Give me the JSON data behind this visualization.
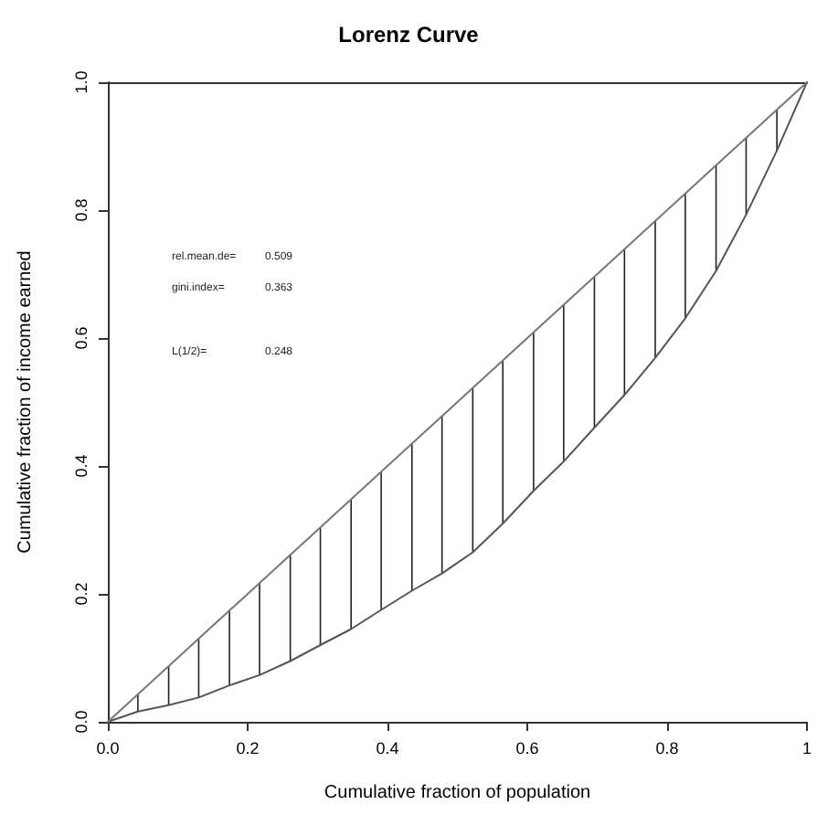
{
  "chart_data": {
    "type": "line",
    "title": "Lorenz Curve",
    "xlabel": "Cumulative fraction of population",
    "ylabel": "Cumulative fraction of income earned",
    "annotations": [
      "rel.mean.de= 0.509",
      "gini.index= 0.363",
      "L(1/2)= 0.248"
    ],
    "series": [
      {
        "color": "#555555",
        "x": [
          0,
          0.043,
          0.087,
          0.13,
          0.174,
          0.217,
          0.261,
          0.304,
          0.348,
          0.391,
          0.435,
          0.478,
          0.522,
          0.565,
          0.609,
          0.652,
          0.696,
          0.739,
          0.783,
          0.826,
          0.87,
          0.913,
          0.957,
          1
        ],
        "values": [
          0,
          0.016,
          0.026,
          0.038,
          0.057,
          0.073,
          0.095,
          0.12,
          0.145,
          0.175,
          0.205,
          0.232,
          0.265,
          0.31,
          0.361,
          0.407,
          0.46,
          0.511,
          0.569,
          0.631,
          0.705,
          0.793,
          0.893,
          1
        ],
        "errors": [
          null,
          [
            0.016,
            0.043
          ],
          [
            0.026,
            0.087
          ],
          [
            0.038,
            0.13
          ],
          [
            0.057,
            0.174
          ],
          [
            0.073,
            0.217
          ],
          [
            0.095,
            0.261
          ],
          [
            0.12,
            0.304
          ],
          [
            0.145,
            0.348
          ],
          [
            0.175,
            0.391
          ],
          [
            0.205,
            0.435
          ],
          [
            0.232,
            0.478
          ],
          [
            0.265,
            0.522
          ],
          [
            0.31,
            0.565
          ],
          [
            0.361,
            0.609
          ],
          [
            0.407,
            0.652
          ],
          [
            0.46,
            0.696
          ],
          [
            0.511,
            0.739
          ],
          [
            0.569,
            0.783
          ],
          [
            0.631,
            0.826
          ],
          [
            0.705,
            0.87
          ],
          [
            0.793,
            0.913
          ],
          [
            0.893,
            0.957
          ],
          null
        ]
      },
      {
        "color": "#777777",
        "x": [
          0,
          1
        ],
        "values": [
          0,
          1
        ]
      }
    ],
    "xlim": [
      0,
      1
    ],
    "ylim": [
      0,
      1
    ],
    "xticks": [
      {
        "value": 0,
        "label": "0.0"
      },
      0.2,
      0.4,
      0.6,
      0.8,
      1
    ],
    "yticks": [
      {
        "value": 0,
        "label": "0.0"
      },
      0.2,
      0.4,
      0.6,
      0.8,
      {
        "value": 1,
        "label": "1.0"
      }
    ],
    "grid": false,
    "marker": "none",
    "line_style": "solid"
  }
}
